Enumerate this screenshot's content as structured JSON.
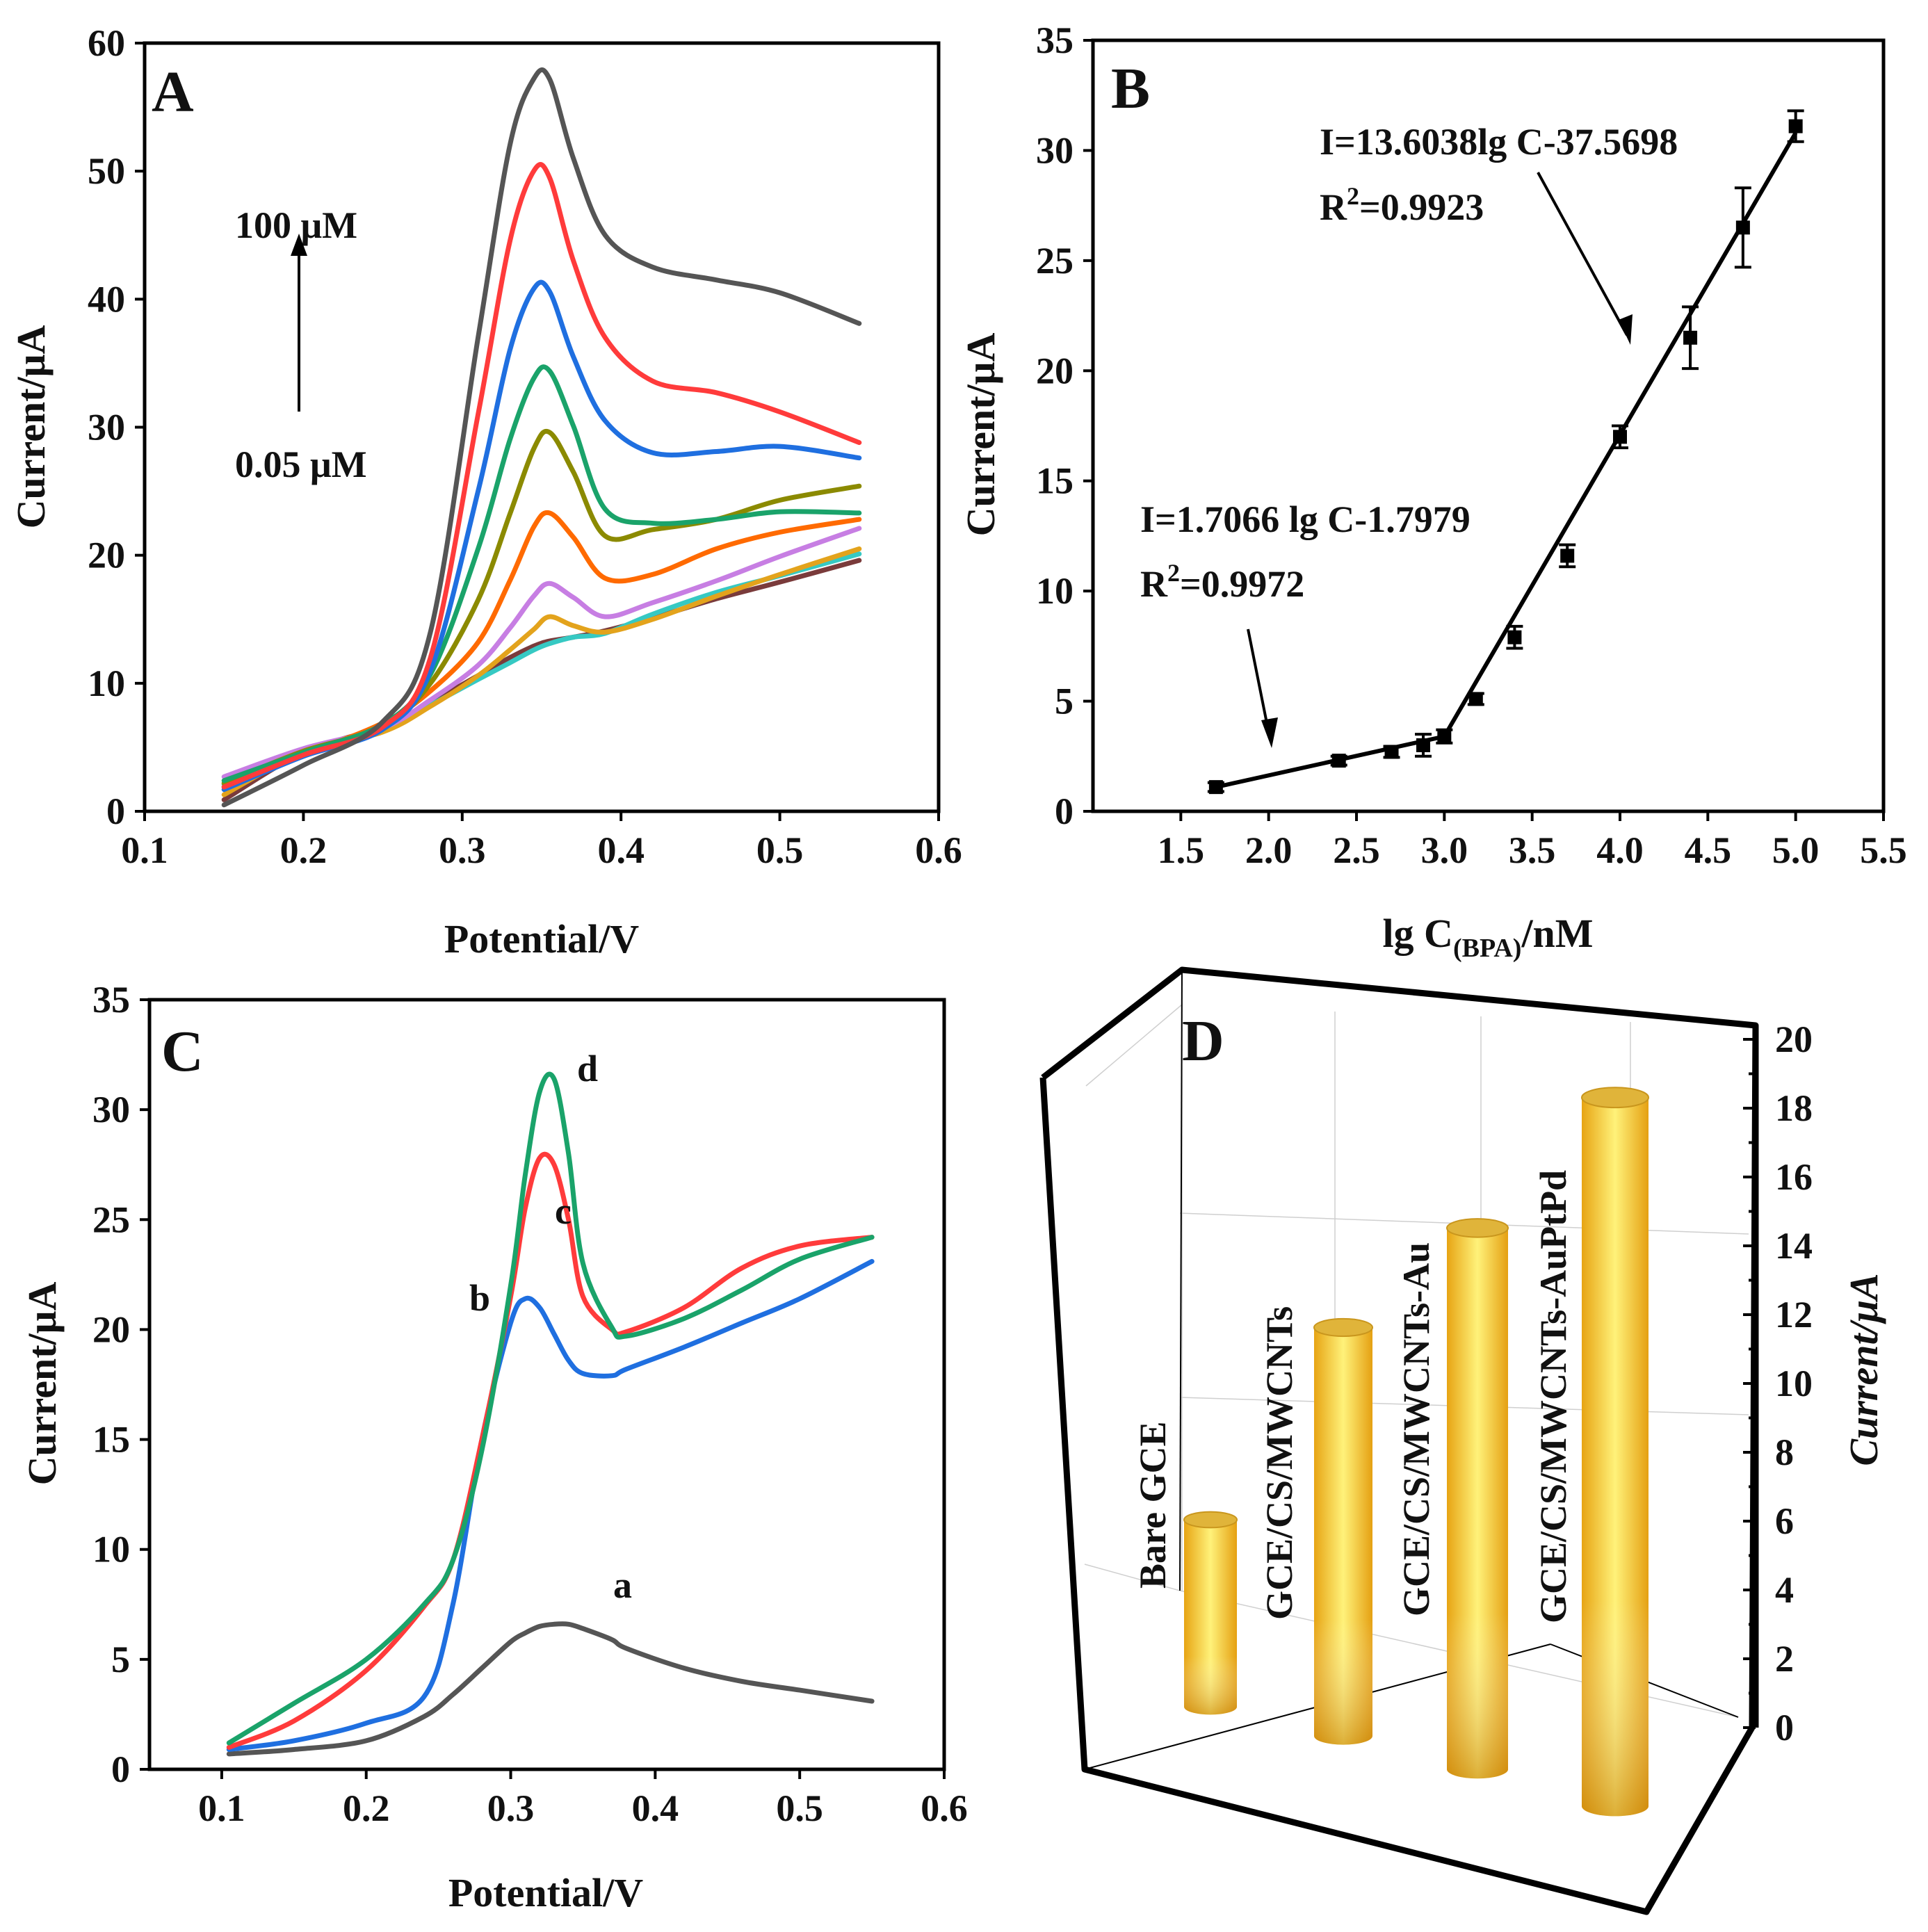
{
  "chart_data": [
    {
      "panel": "A",
      "type": "line",
      "xlabel": "Potential/V",
      "ylabel": "Current/μA",
      "xlim": [
        0.1,
        0.6
      ],
      "ylim": [
        0,
        60
      ],
      "xticks": [
        "0.1",
        "0.2",
        "0.3",
        "0.4",
        "0.5",
        "0.6"
      ],
      "yticks": [
        "0",
        "10",
        "20",
        "30",
        "40",
        "50",
        "60"
      ],
      "annotations": {
        "top": "100 μM",
        "bottom": "0.05 μM"
      },
      "x": [
        0.15,
        0.2,
        0.25,
        0.28,
        0.31,
        0.33,
        0.345,
        0.355,
        0.37,
        0.39,
        0.42,
        0.46,
        0.5,
        0.55
      ],
      "series": [
        {
          "name": "c1",
          "color": "#7a3b3b",
          "values": [
            0.9,
            4.6,
            6.6,
            8.5,
            10.6,
            12.0,
            12.9,
            13.3,
            13.6,
            14.1,
            15.1,
            16.6,
            17.9,
            19.6
          ]
        },
        {
          "name": "c2",
          "color": "#36c9c3",
          "values": [
            2.1,
            4.6,
            6.4,
            8.3,
            10.3,
            11.6,
            12.6,
            13.1,
            13.6,
            13.9,
            15.4,
            17.1,
            18.4,
            20.1
          ]
        },
        {
          "name": "c3",
          "color": "#e3a31c",
          "values": [
            1.3,
            4.6,
            6.2,
            8.2,
            10.6,
            12.6,
            14.2,
            15.2,
            14.5,
            14.0,
            15.0,
            16.8,
            18.5,
            20.5
          ]
        },
        {
          "name": "c4",
          "color": "#c77ee3",
          "values": [
            2.7,
            4.9,
            6.5,
            8.7,
            11.4,
            14.3,
            16.8,
            17.8,
            16.7,
            15.2,
            16.3,
            18.0,
            19.9,
            22.1
          ]
        },
        {
          "name": "c5",
          "color": "#ff6a00",
          "values": [
            1.9,
            4.4,
            6.9,
            9.4,
            13.2,
            18.0,
            22.2,
            23.3,
            21.4,
            18.2,
            18.5,
            20.5,
            21.8,
            22.8
          ]
        },
        {
          "name": "c6",
          "color": "#8b8a00",
          "values": [
            2.2,
            4.7,
            6.6,
            10.0,
            16.5,
            23.2,
            28.3,
            29.6,
            26.5,
            21.5,
            22.0,
            22.8,
            24.3,
            25.4
          ]
        },
        {
          "name": "c7",
          "color": "#1aa36a",
          "values": [
            2.4,
            4.6,
            6.8,
            10.7,
            20.5,
            29.0,
            33.8,
            34.4,
            30.1,
            23.6,
            22.5,
            22.8,
            23.4,
            23.3
          ]
        },
        {
          "name": "c8",
          "color": "#1f6fe0",
          "values": [
            1.7,
            4.3,
            6.4,
            11.0,
            25.0,
            36.0,
            40.8,
            40.6,
            35.5,
            30.5,
            28.0,
            28.1,
            28.5,
            27.6
          ]
        },
        {
          "name": "c9",
          "color": "#ff3b3b",
          "values": [
            1.9,
            4.4,
            6.6,
            12.0,
            31.0,
            44.5,
            50.0,
            49.5,
            43.0,
            37.0,
            33.6,
            32.7,
            31.2,
            28.8
          ]
        },
        {
          "name": "c10",
          "color": "#555555",
          "values": [
            0.5,
            3.6,
            7.0,
            14.0,
            37.0,
            52.0,
            57.2,
            57.2,
            51.0,
            45.0,
            42.5,
            41.5,
            40.5,
            38.1
          ]
        }
      ]
    },
    {
      "panel": "B",
      "type": "scatter",
      "xlabel_main": "lg C",
      "xlabel_sub": "(BPA)",
      "xlabel_unit": "/nM",
      "ylabel": "Current/μA",
      "xlim": [
        1.0,
        5.5
      ],
      "ylim": [
        0,
        35
      ],
      "xticks": [
        "1.5",
        "2.0",
        "2.5",
        "3.0",
        "3.5",
        "4.0",
        "4.5",
        "5.0",
        "5.5"
      ],
      "yticks": [
        "0",
        "5",
        "10",
        "15",
        "20",
        "25",
        "30",
        "35"
      ],
      "x": [
        1.7,
        2.4,
        2.7,
        2.88,
        3.0,
        3.18,
        3.4,
        3.7,
        4.0,
        4.4,
        4.7,
        5.0
      ],
      "y": [
        1.1,
        2.3,
        2.7,
        3.0,
        3.4,
        5.1,
        7.9,
        11.6,
        17.0,
        21.5,
        26.5,
        31.1
      ],
      "yerr": [
        0.2,
        0.2,
        0.25,
        0.5,
        0.3,
        0.25,
        0.5,
        0.5,
        0.5,
        1.4,
        1.8,
        0.7
      ],
      "fits": [
        {
          "x": [
            1.7,
            3.0
          ],
          "y": [
            1.1,
            3.4
          ],
          "equation": "I=1.7066 lg C-1.7979",
          "r2_prefix": "R",
          "r2_sup": "2",
          "r2_value": "=0.9972"
        },
        {
          "x": [
            3.0,
            5.0
          ],
          "y": [
            3.4,
            30.8
          ],
          "equation": "I=13.6038lg C-37.5698",
          "r2_prefix": "R",
          "r2_sup": "2",
          "r2_value": "=0.9923"
        }
      ]
    },
    {
      "panel": "C",
      "type": "line",
      "xlabel": "Potential/V",
      "ylabel": "Current/μA",
      "xlim": [
        0.05,
        0.6
      ],
      "ylim": [
        0,
        35
      ],
      "xticks": [
        "0.1",
        "0.2",
        "0.3",
        "0.4",
        "0.5",
        "0.6"
      ],
      "yticks": [
        "0",
        "5",
        "10",
        "15",
        "20",
        "25",
        "30",
        "35"
      ],
      "x": [
        0.105,
        0.15,
        0.2,
        0.24,
        0.26,
        0.28,
        0.3,
        0.31,
        0.32,
        0.33,
        0.34,
        0.35,
        0.37,
        0.38,
        0.42,
        0.46,
        0.5,
        0.55
      ],
      "series": [
        {
          "name": "a",
          "color": "#555555",
          "values": [
            0.7,
            0.9,
            1.3,
            2.4,
            3.4,
            4.6,
            5.8,
            6.2,
            6.5,
            6.6,
            6.6,
            6.4,
            5.9,
            5.5,
            4.6,
            4.0,
            3.6,
            3.1
          ]
        },
        {
          "name": "b",
          "color": "#1f6fe0",
          "values": [
            0.9,
            1.3,
            2.1,
            3.3,
            7.5,
            15.0,
            20.3,
            21.4,
            21.0,
            19.8,
            18.6,
            18.0,
            17.9,
            18.2,
            19.2,
            20.3,
            21.4,
            23.1
          ]
        },
        {
          "name": "c",
          "color": "#ff3b3b",
          "values": [
            1.0,
            2.2,
            4.5,
            7.4,
            9.5,
            15.0,
            21.5,
            25.5,
            27.8,
            27.5,
            25.0,
            21.5,
            20.0,
            19.9,
            21.0,
            22.8,
            23.8,
            24.2
          ]
        },
        {
          "name": "d",
          "color": "#1aa36a",
          "values": [
            1.2,
            3.0,
            5.0,
            7.5,
            9.5,
            14.5,
            22.0,
            27.0,
            30.8,
            31.4,
            28.0,
            23.0,
            20.1,
            19.7,
            20.5,
            21.8,
            23.2,
            24.2
          ]
        }
      ]
    },
    {
      "panel": "D",
      "type": "bar",
      "zlabel": "Current/μA",
      "zlim": [
        0,
        20
      ],
      "zticks": [
        "0",
        "2",
        "4",
        "6",
        "8",
        "10",
        "12",
        "14",
        "16",
        "18",
        "20"
      ],
      "categories": [
        "Bare GCE",
        "GCE/CS/MWCNTs",
        "GCE/CS/MWCNTs-Au",
        "GCE/CS/MWCNTs-AuPtPd"
      ],
      "values": [
        3.8,
        8.3,
        11.0,
        14.4
      ],
      "bar_color": "#f2c53a"
    }
  ]
}
